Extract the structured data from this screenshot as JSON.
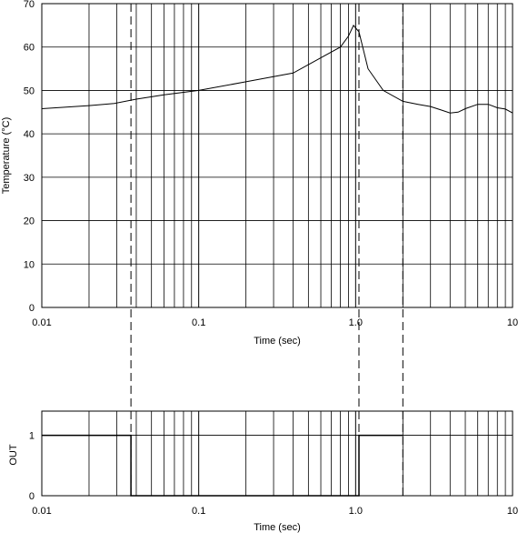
{
  "chart_data": [
    {
      "type": "line",
      "xlabel": "Time (sec)",
      "ylabel": "Temperature (°C)",
      "xscale": "log",
      "xlim": [
        0.01,
        10
      ],
      "ylim": [
        0,
        70
      ],
      "x_tick_labels": [
        "0.01",
        "0.1",
        "1.0",
        "10"
      ],
      "y_tick_labels": [
        "0",
        "10",
        "20",
        "30",
        "40",
        "50",
        "60",
        "70"
      ],
      "grid": true,
      "series": [
        {
          "x": [
            0.01,
            0.02,
            0.029,
            0.04,
            0.06,
            0.1,
            0.2,
            0.4,
            0.6,
            0.8,
            0.9,
            0.97,
            1.05,
            1.2,
            1.5,
            2.0,
            2.5,
            3.0,
            3.5,
            4.0,
            4.5,
            5.0,
            6.0,
            7.0,
            8.0,
            9.0,
            10.0
          ],
          "y": [
            45.8,
            46.5,
            47.0,
            48.0,
            49.0,
            50.0,
            52.0,
            54.0,
            57.5,
            60.0,
            62.5,
            65.0,
            63.5,
            55.0,
            50.0,
            47.5,
            46.8,
            46.3,
            45.5,
            44.8,
            45.0,
            45.8,
            46.8,
            46.8,
            46.0,
            45.7,
            44.8
          ]
        }
      ]
    },
    {
      "type": "line",
      "xlabel": "Time (sec)",
      "ylabel": "OUT",
      "xscale": "log",
      "xlim": [
        0.01,
        10
      ],
      "ylim": [
        0,
        1.4
      ],
      "x_tick_labels": [
        "0.01",
        "0.1",
        "1.0",
        "10"
      ],
      "y_tick_labels": [
        "0",
        "1"
      ],
      "grid": true,
      "series": [
        {
          "x": [
            0.01,
            0.037,
            0.037,
            1.05,
            1.05,
            2.0
          ],
          "y": [
            1,
            1,
            0,
            0,
            1,
            1
          ]
        }
      ]
    }
  ],
  "markers": [
    0.037,
    1.05,
    2.0
  ]
}
